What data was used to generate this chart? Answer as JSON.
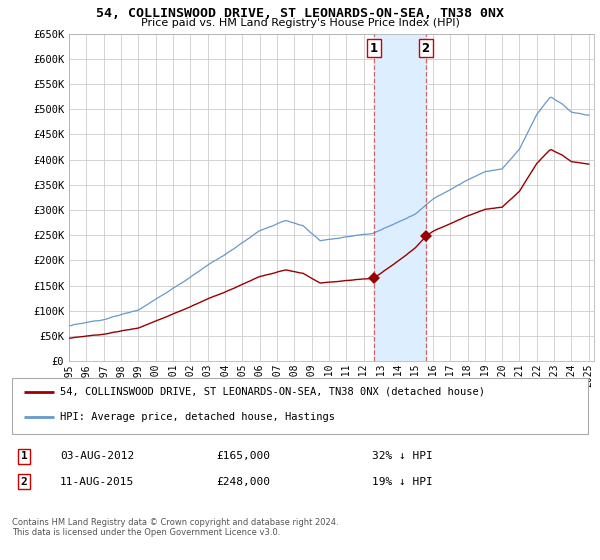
{
  "title": "54, COLLINSWOOD DRIVE, ST LEONARDS-ON-SEA, TN38 0NX",
  "subtitle": "Price paid vs. HM Land Registry's House Price Index (HPI)",
  "legend_red": "54, COLLINSWOOD DRIVE, ST LEONARDS-ON-SEA, TN38 0NX (detached house)",
  "legend_blue": "HPI: Average price, detached house, Hastings",
  "transaction1_date": "03-AUG-2012",
  "transaction1_price": 165000,
  "transaction1_label": "32% ↓ HPI",
  "transaction2_date": "11-AUG-2015",
  "transaction2_price": 248000,
  "transaction2_label": "19% ↓ HPI",
  "footer": "Contains HM Land Registry data © Crown copyright and database right 2024.\nThis data is licensed under the Open Government Licence v3.0.",
  "ylim": [
    0,
    650000
  ],
  "yticks": [
    0,
    50000,
    100000,
    150000,
    200000,
    250000,
    300000,
    350000,
    400000,
    450000,
    500000,
    550000,
    600000,
    650000
  ],
  "background_color": "#ffffff",
  "red_color": "#990000",
  "blue_color": "#6699cc",
  "shade_color": "#ddeeff",
  "sale1_year": 2012.583,
  "sale2_year": 2015.583,
  "hpi_seed": 0
}
